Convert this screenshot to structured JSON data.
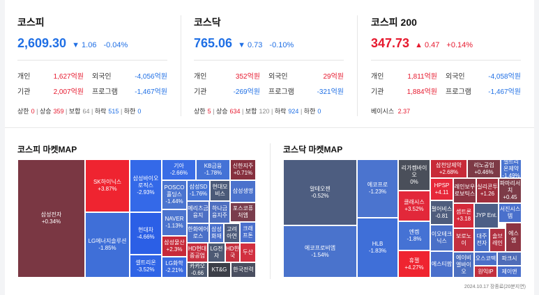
{
  "indices": [
    {
      "name": "코스피",
      "value": "2,609.30",
      "change": "▼ 1.06",
      "pct": "-0.04%",
      "dir": "down",
      "investors": [
        {
          "l1": "개인",
          "v1": "1,627억원",
          "c1": "red",
          "l2": "외국인",
          "v2": "-4,056억원",
          "c2": "blue"
        },
        {
          "l1": "기관",
          "v1": "2,007억원",
          "c1": "red",
          "l2": "프로그램",
          "v2": "-1,467억원",
          "c2": "blue"
        }
      ],
      "updown": {
        "up_limit_label": "상한",
        "up_limit": "0",
        "up_label": "상승",
        "up": "359",
        "flat_label": "보합",
        "flat": "64",
        "down_label": "하락",
        "down": "515",
        "down_limit_label": "하한",
        "down_limit": "0"
      }
    },
    {
      "name": "코스닥",
      "value": "765.06",
      "change": "▼ 0.73",
      "pct": "-0.10%",
      "dir": "down",
      "investors": [
        {
          "l1": "개인",
          "v1": "352억원",
          "c1": "red",
          "l2": "외국인",
          "v2": "29억원",
          "c2": "red"
        },
        {
          "l1": "기관",
          "v1": "-269억원",
          "c1": "blue",
          "l2": "프로그램",
          "v2": "-321억원",
          "c2": "blue"
        }
      ],
      "updown": {
        "up_limit_label": "상한",
        "up_limit": "5",
        "up_label": "상승",
        "up": "634",
        "flat_label": "보합",
        "flat": "120",
        "down_label": "하락",
        "down": "924",
        "down_limit_label": "하한",
        "down_limit": "0"
      }
    },
    {
      "name": "코스피 200",
      "value": "347.73",
      "change": "▲ 0.47",
      "pct": "+0.14%",
      "dir": "up",
      "investors": [
        {
          "l1": "개인",
          "v1": "1,811억원",
          "c1": "red",
          "l2": "외국인",
          "v2": "-4,058억원",
          "c2": "blue"
        },
        {
          "l1": "기관",
          "v1": "1,884억원",
          "c1": "red",
          "l2": "프로그램",
          "v2": "-1,467억원",
          "c2": "blue"
        }
      ],
      "basis_label": "베이시스",
      "basis": "2.37"
    }
  ],
  "kospi_map": {
    "title": "코스피 마켓MAP",
    "tiles": [
      {
        "name": "삼성전자",
        "pct": "+0.34%",
        "color": "#7a3743"
      },
      {
        "name": "SK하이닉스",
        "pct": "+3.87%",
        "color": "#ef2430"
      },
      {
        "name": "LG에너지솔루션",
        "pct": "-1.85%",
        "color": "#3f6fd8"
      },
      {
        "name": "삼성바이오로직스",
        "pct": "-2.93%",
        "color": "#3469e8"
      },
      {
        "name": "현대차",
        "pct": "-4.66%",
        "color": "#2b5fe6"
      },
      {
        "name": "셀트리온",
        "pct": "-3.52%",
        "color": "#2f64e6"
      },
      {
        "name": "기아",
        "pct": "-2.66%",
        "color": "#3a6de6"
      },
      {
        "name": "KB금융",
        "pct": "-1.78%",
        "color": "#4472d6"
      },
      {
        "name": "신한지주",
        "pct": "+0.71%",
        "color": "#86303e"
      },
      {
        "name": "POSCO홀딩스",
        "pct": "-1.44%",
        "color": "#4b75d0"
      },
      {
        "name": "삼성SD",
        "pct": "-1.76%",
        "color": "#4573d4"
      },
      {
        "name": "현대모비스",
        "pct": "",
        "color": "#4b5a78"
      },
      {
        "name": "삼성생명",
        "pct": "",
        "color": "#4b72cc"
      },
      {
        "name": "NAVER",
        "pct": "-1.13%",
        "color": "#4b74cf"
      },
      {
        "name": "메리츠금융지",
        "pct": "",
        "color": "#4e70c4"
      },
      {
        "name": "하나금융지주",
        "pct": "",
        "color": "#4e6fc0"
      },
      {
        "name": "포스코퓨처엠",
        "pct": "",
        "color": "#7a3d4c"
      },
      {
        "name": "삼성물산",
        "pct": "+2.3%",
        "color": "#c72a3a"
      },
      {
        "name": "한화에어로스",
        "pct": "",
        "color": "#4b70c8"
      },
      {
        "name": "삼성화재",
        "pct": "",
        "color": "#4a70cc"
      },
      {
        "name": "고려아연",
        "pct": "",
        "color": "#4d5b7a"
      },
      {
        "name": "크래프톤",
        "pct": "",
        "color": "#4a6fcc"
      },
      {
        "name": "LG화학",
        "pct": "-2.21%",
        "color": "#3b6bdf"
      },
      {
        "name": "HD현대중공업",
        "pct": "",
        "color": "#c73040"
      },
      {
        "name": "LG전자",
        "pct": "",
        "color": "#4d5a74"
      },
      {
        "name": "HD한국",
        "pct": "",
        "color": "#c4303e"
      },
      {
        "name": "두산",
        "pct": "",
        "color": "#d23040"
      },
      {
        "name": "카카오",
        "pct": "-0.66",
        "color": "#4e5a70"
      },
      {
        "name": "KT&G",
        "pct": "",
        "color": "#3c3f48"
      },
      {
        "name": "한국전력",
        "pct": "",
        "color": "#4a4f60"
      }
    ]
  },
  "kosdaq_map": {
    "title": "코스닥 마켓MAP",
    "tiles": [
      {
        "name": "알테오젠",
        "pct": "-0.52%",
        "color": "#4d5d80"
      },
      {
        "name": "에코프로비엠",
        "pct": "-1.54%",
        "color": "#4a73cc"
      },
      {
        "name": "에코프로",
        "pct": "-1.23%",
        "color": "#4b74cf"
      },
      {
        "name": "HLB",
        "pct": "-1.83%",
        "color": "#3f6fd8"
      },
      {
        "name": "리가켐바이오",
        "pct": "0%",
        "color": "#4a4f5a"
      },
      {
        "name": "클래시스",
        "pct": "+3.52%",
        "color": "#e2283a"
      },
      {
        "name": "엔켐",
        "pct": "-1.8%",
        "color": "#4572d4"
      },
      {
        "name": "휴젤",
        "pct": "+4.27%",
        "color": "#ef2430"
      },
      {
        "name": "삼천당제약",
        "pct": "+2.68%",
        "color": "#c82a38"
      },
      {
        "name": "HPSP",
        "pct": "+4.11",
        "color": "#e6283a"
      },
      {
        "name": "펄어비스",
        "pct": "-0.81",
        "color": "#4e5c7c"
      },
      {
        "name": "이오테크닉스",
        "pct": "",
        "color": "#4a70c8"
      },
      {
        "name": "에스티팜",
        "pct": "",
        "color": "#4a70cc"
      },
      {
        "name": "리노공업",
        "pct": "+0.46%",
        "color": "#7d3a46"
      },
      {
        "name": "셀트리온제약",
        "pct": "-1.49%",
        "color": "#4a74d0"
      },
      {
        "name": "레인보우로보틱스",
        "pct": "",
        "color": "#8a3442"
      },
      {
        "name": "실리콘투",
        "pct": "+1.26",
        "color": "#a02e3c"
      },
      {
        "name": "파마리서치",
        "pct": "+0.45",
        "color": "#7c3b47"
      },
      {
        "name": "셉트론",
        "pct": "+3.18",
        "color": "#d52a3a"
      },
      {
        "name": "JYP Ent.",
        "pct": "",
        "color": "#4c5f86"
      },
      {
        "name": "서진시스템",
        "pct": "",
        "color": "#4a70cc"
      },
      {
        "name": "보로노이",
        "pct": "",
        "color": "#c33040"
      },
      {
        "name": "대주전자",
        "pct": "",
        "color": "#4a6fc6"
      },
      {
        "name": "솔브레인",
        "pct": "",
        "color": "#b03040"
      },
      {
        "name": "에스엠",
        "pct": "",
        "color": "#8d3442"
      },
      {
        "name": "에이비엘바이오",
        "pct": "",
        "color": "#4d70c0"
      },
      {
        "name": "오스코텍",
        "pct": "",
        "color": "#4a6fc8"
      },
      {
        "name": "파크시",
        "pct": "",
        "color": "#4e6cb8"
      },
      {
        "name": "원익IP",
        "pct": "",
        "color": "#c2303e"
      },
      {
        "name": "제이앤",
        "pct": "",
        "color": "#4a70cc"
      }
    ]
  },
  "footer": {
    "date": "2024.10.17 장종료(20분지연)"
  }
}
